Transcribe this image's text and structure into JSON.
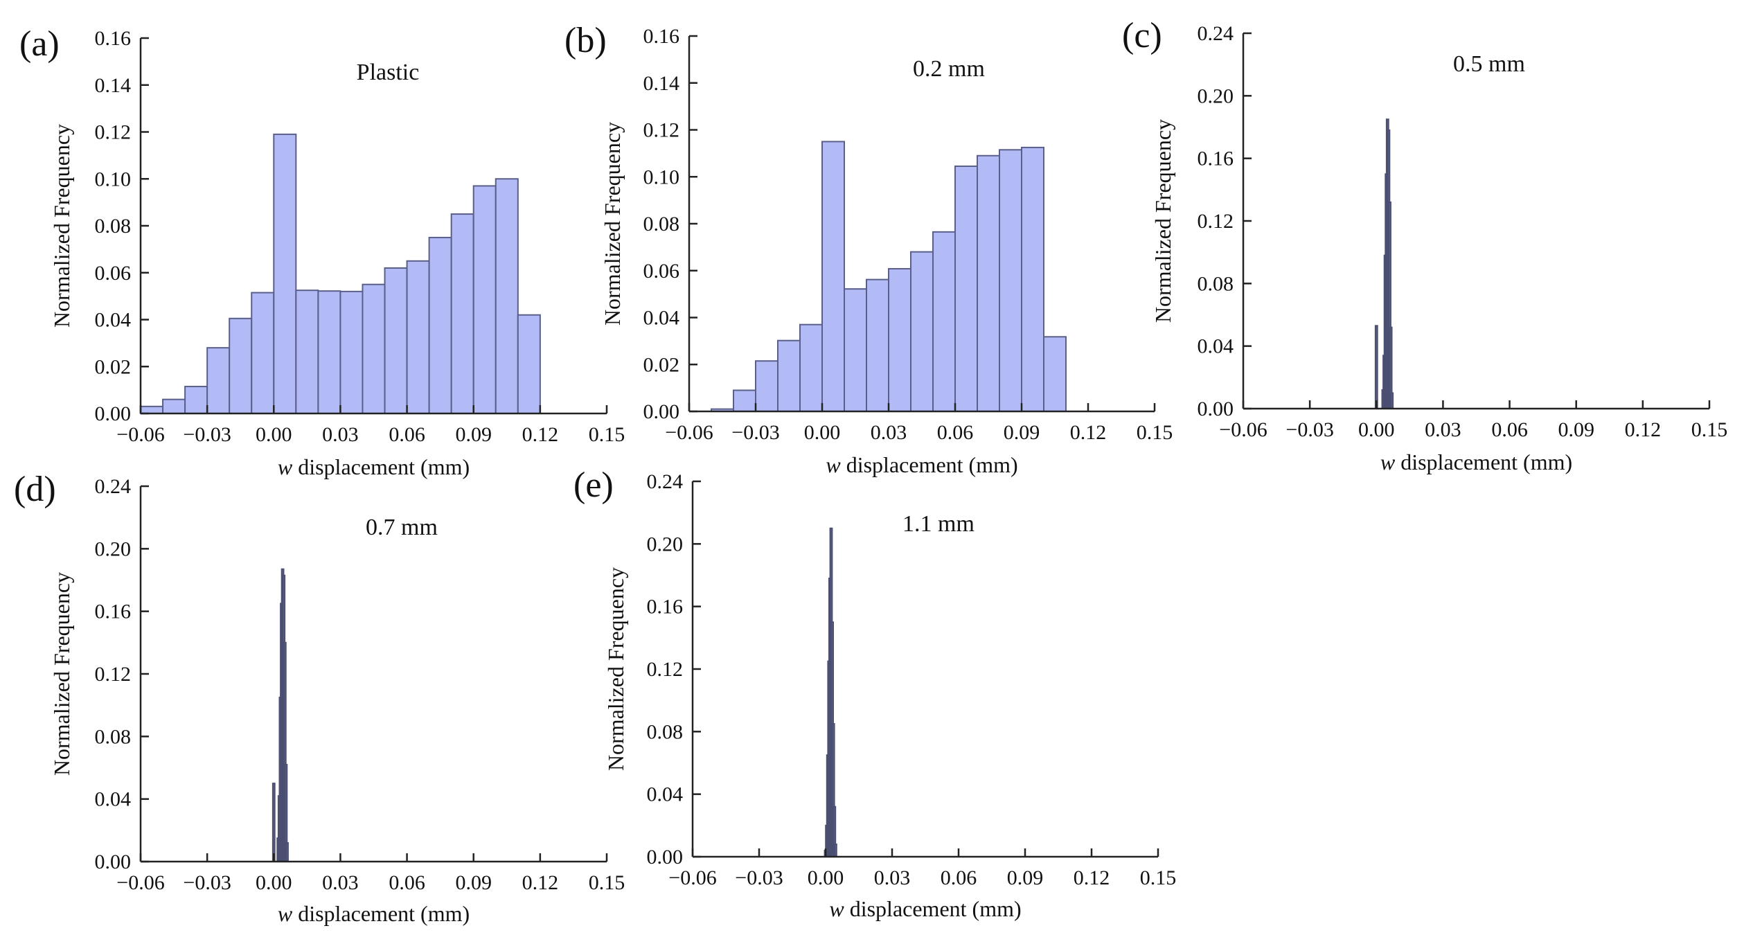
{
  "colors": {
    "bar_fill": "#b3bbf6",
    "bar_stroke": "#5a5f8a",
    "spike_fill": "#5d6185",
    "axis": "#222222"
  },
  "chart_data": [
    {
      "id": "a",
      "letter": "(a)",
      "type": "bar",
      "title": "Plastic",
      "xlabel_italic": "w",
      "xlabel": "displacement (mm)",
      "ylabel": "Normalized Frequency",
      "xlim": [
        -0.06,
        0.15
      ],
      "ylim": [
        0,
        0.16
      ],
      "xticks": [
        "−0.06",
        "−0.03",
        "0.00",
        "0.03",
        "0.06",
        "0.09",
        "0.12",
        "0.15"
      ],
      "yticks": [
        "0.00",
        "0.02",
        "0.04",
        "0.06",
        "0.08",
        "0.10",
        "0.12",
        "0.14",
        "0.16"
      ],
      "bins": {
        "start": -0.06,
        "width": 0.01,
        "values": [
          0.003,
          0.006,
          0.0115,
          0.028,
          0.0405,
          0.0515,
          0.119,
          0.0525,
          0.0522,
          0.052,
          0.055,
          0.062,
          0.065,
          0.075,
          0.085,
          0.097,
          0.1,
          0.042
        ]
      }
    },
    {
      "id": "b",
      "letter": "(b)",
      "type": "bar",
      "title": "0.2 mm",
      "xlabel_italic": "w",
      "xlabel": "displacement (mm)",
      "ylabel": "Normalized Frequency",
      "xlim": [
        -0.06,
        0.15
      ],
      "ylim": [
        0,
        0.16
      ],
      "xticks": [
        "−0.06",
        "−0.03",
        "0.00",
        "0.03",
        "0.06",
        "0.09",
        "0.12",
        "0.15"
      ],
      "yticks": [
        "0.00",
        "0.02",
        "0.04",
        "0.06",
        "0.08",
        "0.10",
        "0.12",
        "0.14",
        "0.16"
      ],
      "bins": {
        "start": -0.05,
        "width": 0.01,
        "values": [
          0.001,
          0.009,
          0.0215,
          0.0302,
          0.037,
          0.115,
          0.0522,
          0.0562,
          0.0608,
          0.068,
          0.0765,
          0.1045,
          0.109,
          0.1115,
          0.1125,
          0.0318
        ]
      }
    },
    {
      "id": "c",
      "letter": "(c)",
      "type": "bar",
      "title": "0.5 mm",
      "xlabel_italic": "w",
      "xlabel": "displacement (mm)",
      "ylabel": "Normalized Frequency",
      "xlim": [
        -0.06,
        0.15
      ],
      "ylim": [
        0,
        0.24
      ],
      "xticks": [
        "−0.06",
        "−0.03",
        "0.00",
        "0.03",
        "0.06",
        "0.09",
        "0.12",
        "0.15"
      ],
      "yticks": [
        "0.00",
        "0.04",
        "0.08",
        "0.12",
        "0.16",
        "0.20",
        "0.24"
      ],
      "spikes": {
        "x": [
          0.0,
          0.003,
          0.0035,
          0.004,
          0.0045,
          0.005,
          0.0055,
          0.006,
          0.0065,
          0.007
        ],
        "values": [
          0.053,
          0.012,
          0.034,
          0.098,
          0.15,
          0.185,
          0.178,
          0.132,
          0.052,
          0.01
        ]
      }
    },
    {
      "id": "d",
      "letter": "(d)",
      "type": "bar",
      "title": "0.7 mm",
      "xlabel_italic": "w",
      "xlabel": "displacement (mm)",
      "ylabel": "Normalized Frequency",
      "xlim": [
        -0.06,
        0.15
      ],
      "ylim": [
        0,
        0.24
      ],
      "xticks": [
        "−0.06",
        "−0.03",
        "0.00",
        "0.03",
        "0.06",
        "0.09",
        "0.12",
        "0.15"
      ],
      "yticks": [
        "0.00",
        "0.04",
        "0.08",
        "0.12",
        "0.16",
        "0.20",
        "0.24"
      ],
      "spikes": {
        "x": [
          0.0,
          0.002,
          0.0025,
          0.003,
          0.0035,
          0.004,
          0.0045,
          0.005,
          0.0055,
          0.006
        ],
        "values": [
          0.05,
          0.015,
          0.042,
          0.105,
          0.165,
          0.187,
          0.183,
          0.14,
          0.062,
          0.012
        ]
      }
    },
    {
      "id": "e",
      "letter": "(e)",
      "type": "bar",
      "title": "1.1 mm",
      "xlabel_italic": "w",
      "xlabel": "displacement (mm)",
      "ylabel": "Normalized Frequency",
      "xlim": [
        -0.06,
        0.15
      ],
      "ylim": [
        0,
        0.24
      ],
      "xticks": [
        "−0.06",
        "−0.03",
        "0.00",
        "0.03",
        "0.06",
        "0.09",
        "0.12",
        "0.15"
      ],
      "yticks": [
        "0.00",
        "0.04",
        "0.08",
        "0.12",
        "0.16",
        "0.20",
        "0.24"
      ],
      "spikes": {
        "x": [
          0.0,
          0.0005,
          0.001,
          0.0015,
          0.002,
          0.0025,
          0.003,
          0.0035,
          0.004,
          0.0045
        ],
        "values": [
          0.004,
          0.02,
          0.065,
          0.125,
          0.178,
          0.21,
          0.15,
          0.085,
          0.032,
          0.008
        ]
      }
    }
  ]
}
